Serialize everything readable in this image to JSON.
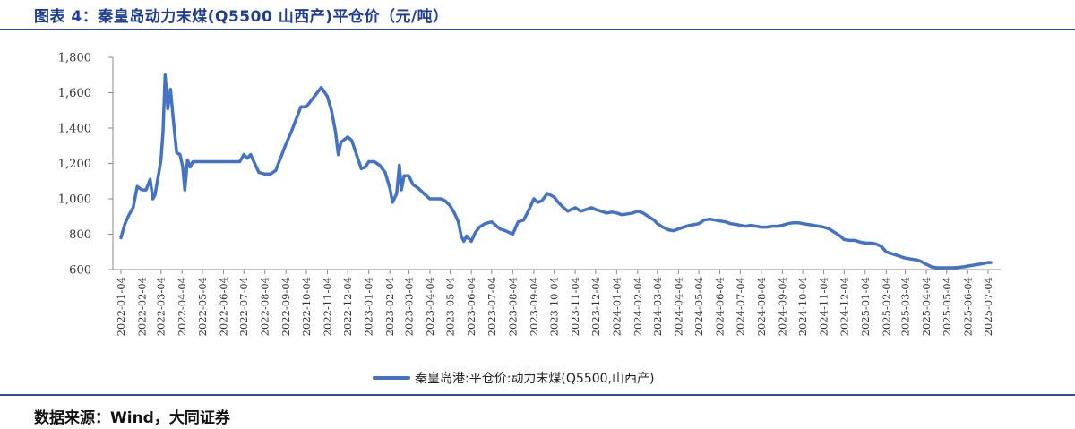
{
  "figure": {
    "title": "图表 4：秦皇岛动力末煤(Q5500 山西产)平仓价（元/吨）",
    "source": "数据来源：Wind，大同证券"
  },
  "colors": {
    "line": "#4472c4",
    "rule": "#2f4f9e",
    "title": "#1f3e93"
  },
  "chart_data": {
    "type": "line",
    "title": "",
    "xlabel": "",
    "ylabel": "",
    "ylim": [
      600,
      1800
    ],
    "yticks": [
      600,
      800,
      1000,
      1200,
      1400,
      1600,
      1800
    ],
    "ytick_labels": [
      "600",
      "800",
      "1,000",
      "1,200",
      "1,400",
      "1,600",
      "1,800"
    ],
    "xtick_labels": [
      "2022-01-04",
      "2022-02-04",
      "2022-03-04",
      "2022-04-04",
      "2022-05-04",
      "2022-06-04",
      "2022-07-04",
      "2022-08-04",
      "2022-09-04",
      "2022-10-04",
      "2022-11-04",
      "2022-12-04",
      "2023-01-04",
      "2023-02-04",
      "2023-03-04",
      "2023-04-04",
      "2023-05-04",
      "2023-06-04",
      "2023-07-04",
      "2023-08-04",
      "2023-09-04",
      "2023-10-04",
      "2023-11-04",
      "2023-12-04",
      "2024-01-04",
      "2024-02-04",
      "2024-03-04",
      "2024-04-04",
      "2024-05-04",
      "2024-06-04",
      "2024-07-04",
      "2024-08-04",
      "2024-09-04",
      "2024-10-04",
      "2024-11-04",
      "2024-12-04",
      "2025-01-04",
      "2025-02-04",
      "2025-03-04",
      "2025-04-04",
      "2025-05-04",
      "2025-06-04",
      "2025-07-04"
    ],
    "legend": "bottom-center",
    "grid": false,
    "series": [
      {
        "name": "秦皇岛港:平仓价:动力末煤(Q5500,山西产)",
        "points": [
          [
            "2022-01-04",
            780
          ],
          [
            "2022-01-10",
            860
          ],
          [
            "2022-01-16",
            910
          ],
          [
            "2022-01-22",
            950
          ],
          [
            "2022-01-28",
            1070
          ],
          [
            "2022-02-04",
            1050
          ],
          [
            "2022-02-10",
            1050
          ],
          [
            "2022-02-16",
            1110
          ],
          [
            "2022-02-20",
            1000
          ],
          [
            "2022-02-23",
            1020
          ],
          [
            "2022-03-01",
            1150
          ],
          [
            "2022-03-04",
            1220
          ],
          [
            "2022-03-07",
            1380
          ],
          [
            "2022-03-10",
            1700
          ],
          [
            "2022-03-14",
            1510
          ],
          [
            "2022-03-18",
            1620
          ],
          [
            "2022-03-22",
            1450
          ],
          [
            "2022-03-27",
            1260
          ],
          [
            "2022-04-01",
            1250
          ],
          [
            "2022-04-05",
            1180
          ],
          [
            "2022-04-08",
            1050
          ],
          [
            "2022-04-12",
            1220
          ],
          [
            "2022-04-16",
            1180
          ],
          [
            "2022-04-20",
            1210
          ],
          [
            "2022-04-26",
            1210
          ],
          [
            "2022-05-04",
            1210
          ],
          [
            "2022-05-20",
            1210
          ],
          [
            "2022-06-04",
            1210
          ],
          [
            "2022-06-20",
            1210
          ],
          [
            "2022-06-28",
            1210
          ],
          [
            "2022-07-04",
            1250
          ],
          [
            "2022-07-09",
            1230
          ],
          [
            "2022-07-14",
            1250
          ],
          [
            "2022-07-20",
            1200
          ],
          [
            "2022-07-26",
            1150
          ],
          [
            "2022-08-04",
            1140
          ],
          [
            "2022-08-12",
            1140
          ],
          [
            "2022-08-20",
            1160
          ],
          [
            "2022-08-28",
            1240
          ],
          [
            "2022-09-04",
            1310
          ],
          [
            "2022-09-12",
            1380
          ],
          [
            "2022-09-20",
            1460
          ],
          [
            "2022-09-26",
            1520
          ],
          [
            "2022-10-04",
            1520
          ],
          [
            "2022-10-12",
            1560
          ],
          [
            "2022-10-20",
            1600
          ],
          [
            "2022-10-26",
            1630
          ],
          [
            "2022-11-04",
            1580
          ],
          [
            "2022-11-10",
            1500
          ],
          [
            "2022-11-16",
            1380
          ],
          [
            "2022-11-20",
            1250
          ],
          [
            "2022-11-24",
            1320
          ],
          [
            "2022-12-04",
            1350
          ],
          [
            "2022-12-10",
            1330
          ],
          [
            "2022-12-16",
            1260
          ],
          [
            "2022-12-24",
            1170
          ],
          [
            "2022-12-30",
            1180
          ],
          [
            "2023-01-04",
            1210
          ],
          [
            "2023-01-12",
            1210
          ],
          [
            "2023-01-20",
            1190
          ],
          [
            "2023-01-28",
            1150
          ],
          [
            "2023-02-04",
            1060
          ],
          [
            "2023-02-08",
            980
          ],
          [
            "2023-02-14",
            1030
          ],
          [
            "2023-02-18",
            1190
          ],
          [
            "2023-02-21",
            1050
          ],
          [
            "2023-02-25",
            1130
          ],
          [
            "2023-03-04",
            1130
          ],
          [
            "2023-03-10",
            1080
          ],
          [
            "2023-03-18",
            1060
          ],
          [
            "2023-03-26",
            1030
          ],
          [
            "2023-04-04",
            1000
          ],
          [
            "2023-04-12",
            1000
          ],
          [
            "2023-04-20",
            1000
          ],
          [
            "2023-04-26",
            990
          ],
          [
            "2023-05-04",
            960
          ],
          [
            "2023-05-10",
            920
          ],
          [
            "2023-05-16",
            870
          ],
          [
            "2023-05-20",
            790
          ],
          [
            "2023-05-24",
            760
          ],
          [
            "2023-05-28",
            790
          ],
          [
            "2023-06-04",
            760
          ],
          [
            "2023-06-10",
            810
          ],
          [
            "2023-06-16",
            840
          ],
          [
            "2023-06-24",
            860
          ],
          [
            "2023-07-04",
            870
          ],
          [
            "2023-07-10",
            850
          ],
          [
            "2023-07-16",
            830
          ],
          [
            "2023-07-24",
            820
          ],
          [
            "2023-08-04",
            800
          ],
          [
            "2023-08-12",
            870
          ],
          [
            "2023-08-20",
            880
          ],
          [
            "2023-08-28",
            940
          ],
          [
            "2023-09-04",
            1000
          ],
          [
            "2023-09-10",
            980
          ],
          [
            "2023-09-16",
            990
          ],
          [
            "2023-09-24",
            1030
          ],
          [
            "2023-10-04",
            1010
          ],
          [
            "2023-10-10",
            980
          ],
          [
            "2023-10-18",
            950
          ],
          [
            "2023-10-24",
            930
          ],
          [
            "2023-11-04",
            950
          ],
          [
            "2023-11-12",
            930
          ],
          [
            "2023-11-20",
            940
          ],
          [
            "2023-11-28",
            950
          ],
          [
            "2023-12-04",
            940
          ],
          [
            "2023-12-12",
            930
          ],
          [
            "2023-12-20",
            920
          ],
          [
            "2023-12-28",
            925
          ],
          [
            "2024-01-04",
            920
          ],
          [
            "2024-01-12",
            910
          ],
          [
            "2024-01-20",
            915
          ],
          [
            "2024-01-28",
            920
          ],
          [
            "2024-02-04",
            930
          ],
          [
            "2024-02-12",
            920
          ],
          [
            "2024-02-20",
            900
          ],
          [
            "2024-02-28",
            880
          ],
          [
            "2024-03-04",
            860
          ],
          [
            "2024-03-12",
            840
          ],
          [
            "2024-03-20",
            825
          ],
          [
            "2024-03-28",
            820
          ],
          [
            "2024-04-04",
            830
          ],
          [
            "2024-04-12",
            840
          ],
          [
            "2024-04-20",
            850
          ],
          [
            "2024-04-28",
            855
          ],
          [
            "2024-05-04",
            860
          ],
          [
            "2024-05-12",
            880
          ],
          [
            "2024-05-20",
            885
          ],
          [
            "2024-05-28",
            880
          ],
          [
            "2024-06-04",
            875
          ],
          [
            "2024-06-12",
            870
          ],
          [
            "2024-06-20",
            860
          ],
          [
            "2024-06-28",
            855
          ],
          [
            "2024-07-04",
            850
          ],
          [
            "2024-07-12",
            845
          ],
          [
            "2024-07-20",
            850
          ],
          [
            "2024-07-28",
            845
          ],
          [
            "2024-08-04",
            840
          ],
          [
            "2024-08-12",
            840
          ],
          [
            "2024-08-20",
            845
          ],
          [
            "2024-08-28",
            845
          ],
          [
            "2024-09-04",
            850
          ],
          [
            "2024-09-12",
            860
          ],
          [
            "2024-09-20",
            865
          ],
          [
            "2024-09-28",
            865
          ],
          [
            "2024-10-04",
            860
          ],
          [
            "2024-10-12",
            855
          ],
          [
            "2024-10-20",
            850
          ],
          [
            "2024-10-28",
            845
          ],
          [
            "2024-11-04",
            840
          ],
          [
            "2024-11-12",
            830
          ],
          [
            "2024-11-20",
            810
          ],
          [
            "2024-11-28",
            790
          ],
          [
            "2024-12-04",
            770
          ],
          [
            "2024-12-12",
            765
          ],
          [
            "2024-12-20",
            765
          ],
          [
            "2024-12-28",
            755
          ],
          [
            "2025-01-04",
            750
          ],
          [
            "2025-01-12",
            750
          ],
          [
            "2025-01-20",
            745
          ],
          [
            "2025-01-28",
            730
          ],
          [
            "2025-02-04",
            700
          ],
          [
            "2025-02-12",
            690
          ],
          [
            "2025-02-20",
            680
          ],
          [
            "2025-02-28",
            670
          ],
          [
            "2025-03-04",
            665
          ],
          [
            "2025-03-12",
            660
          ],
          [
            "2025-03-20",
            655
          ],
          [
            "2025-03-28",
            645
          ],
          [
            "2025-04-04",
            630
          ],
          [
            "2025-04-12",
            615
          ],
          [
            "2025-04-20",
            610
          ],
          [
            "2025-04-28",
            610
          ],
          [
            "2025-05-04",
            610
          ],
          [
            "2025-05-12",
            610
          ],
          [
            "2025-05-20",
            612
          ],
          [
            "2025-05-28",
            615
          ],
          [
            "2025-06-04",
            620
          ],
          [
            "2025-06-12",
            625
          ],
          [
            "2025-06-20",
            630
          ],
          [
            "2025-06-28",
            635
          ],
          [
            "2025-07-04",
            640
          ],
          [
            "2025-07-08",
            640
          ]
        ]
      }
    ]
  }
}
